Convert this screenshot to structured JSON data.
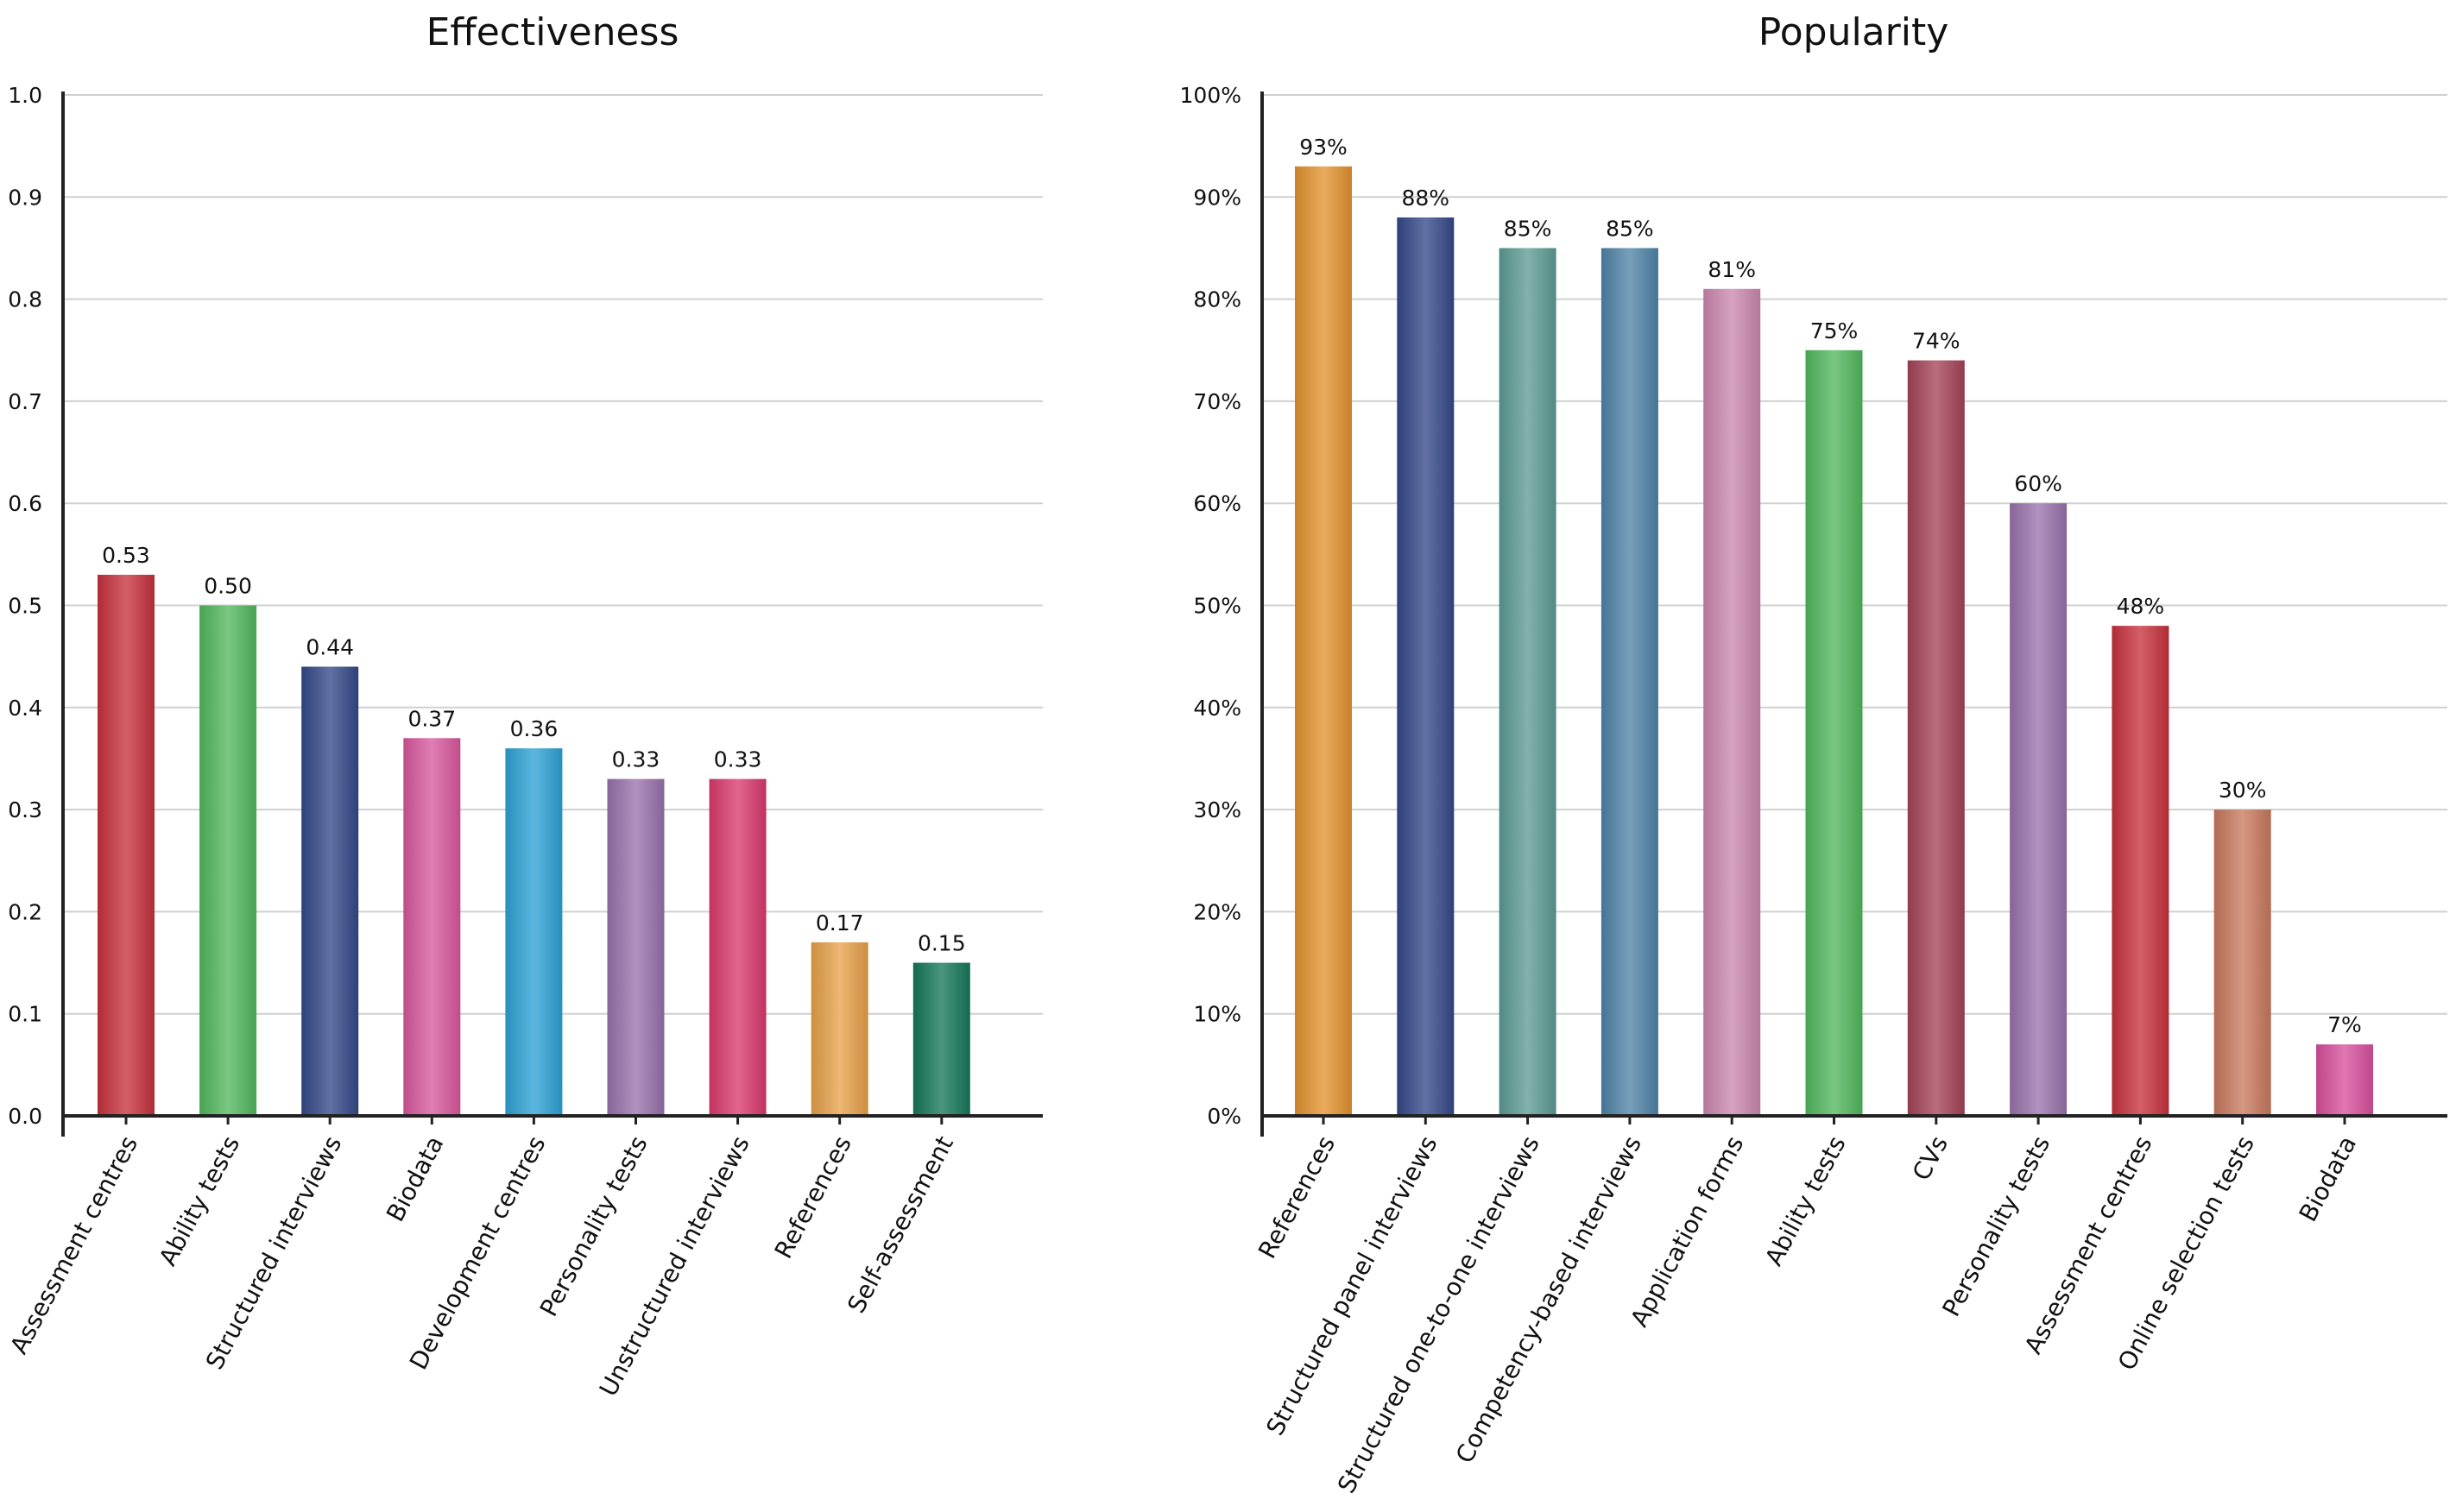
{
  "chart_data": [
    {
      "type": "bar",
      "title": "Effectiveness",
      "categories": [
        "Assessment centres",
        "Ability tests",
        "Structured interviews",
        "Biodata",
        "Development centres",
        "Personality tests",
        "Unstructured interviews",
        "References",
        "Self-assessment"
      ],
      "values": [
        0.53,
        0.5,
        0.44,
        0.37,
        0.36,
        0.33,
        0.33,
        0.17,
        0.15
      ],
      "value_labels": [
        "0.53",
        "0.50",
        "0.44",
        "0.37",
        "0.36",
        "0.33",
        "0.33",
        "0.17",
        "0.15"
      ],
      "colors": [
        "#c8323c",
        "#52b95e",
        "#34498a",
        "#d9599e",
        "#2ea3d6",
        "#9a72ad",
        "#db3a6e",
        "#e8a24a",
        "#16795a"
      ],
      "ylim": [
        0,
        1.0
      ],
      "yticks": [
        "0.0",
        "0.1",
        "0.2",
        "0.3",
        "0.4",
        "0.5",
        "0.6",
        "0.7",
        "0.8",
        "0.9",
        "1.0"
      ],
      "xlabel": "",
      "ylabel": "",
      "grid": true
    },
    {
      "type": "bar",
      "title": "Popularity",
      "categories": [
        "References",
        "Structured panel interviews",
        "Structured one-to-one interviews",
        "Competency-based interviews",
        "Application forms",
        "Ability tests",
        "CVs",
        "Personality tests",
        "Assessment centres",
        "Online selection tests",
        "Biodata"
      ],
      "values": [
        93,
        88,
        85,
        85,
        81,
        75,
        74,
        60,
        48,
        30,
        7
      ],
      "value_labels": [
        "93%",
        "88%",
        "85%",
        "85%",
        "81%",
        "75%",
        "74%",
        "60%",
        "48%",
        "30%",
        "7%"
      ],
      "colors": [
        "#e4932f",
        "#34498a",
        "#5e9c95",
        "#4f84a8",
        "#cc88b0",
        "#52b95e",
        "#a54458",
        "#9a72ad",
        "#c8323c",
        "#c97a5e",
        "#d9509e"
      ],
      "ylim": [
        0,
        100
      ],
      "yticks": [
        "0%",
        "10%",
        "20%",
        "30%",
        "40%",
        "50%",
        "60%",
        "70%",
        "80%",
        "90%",
        "100%"
      ],
      "xlabel": "",
      "ylabel": "",
      "grid": true
    }
  ]
}
